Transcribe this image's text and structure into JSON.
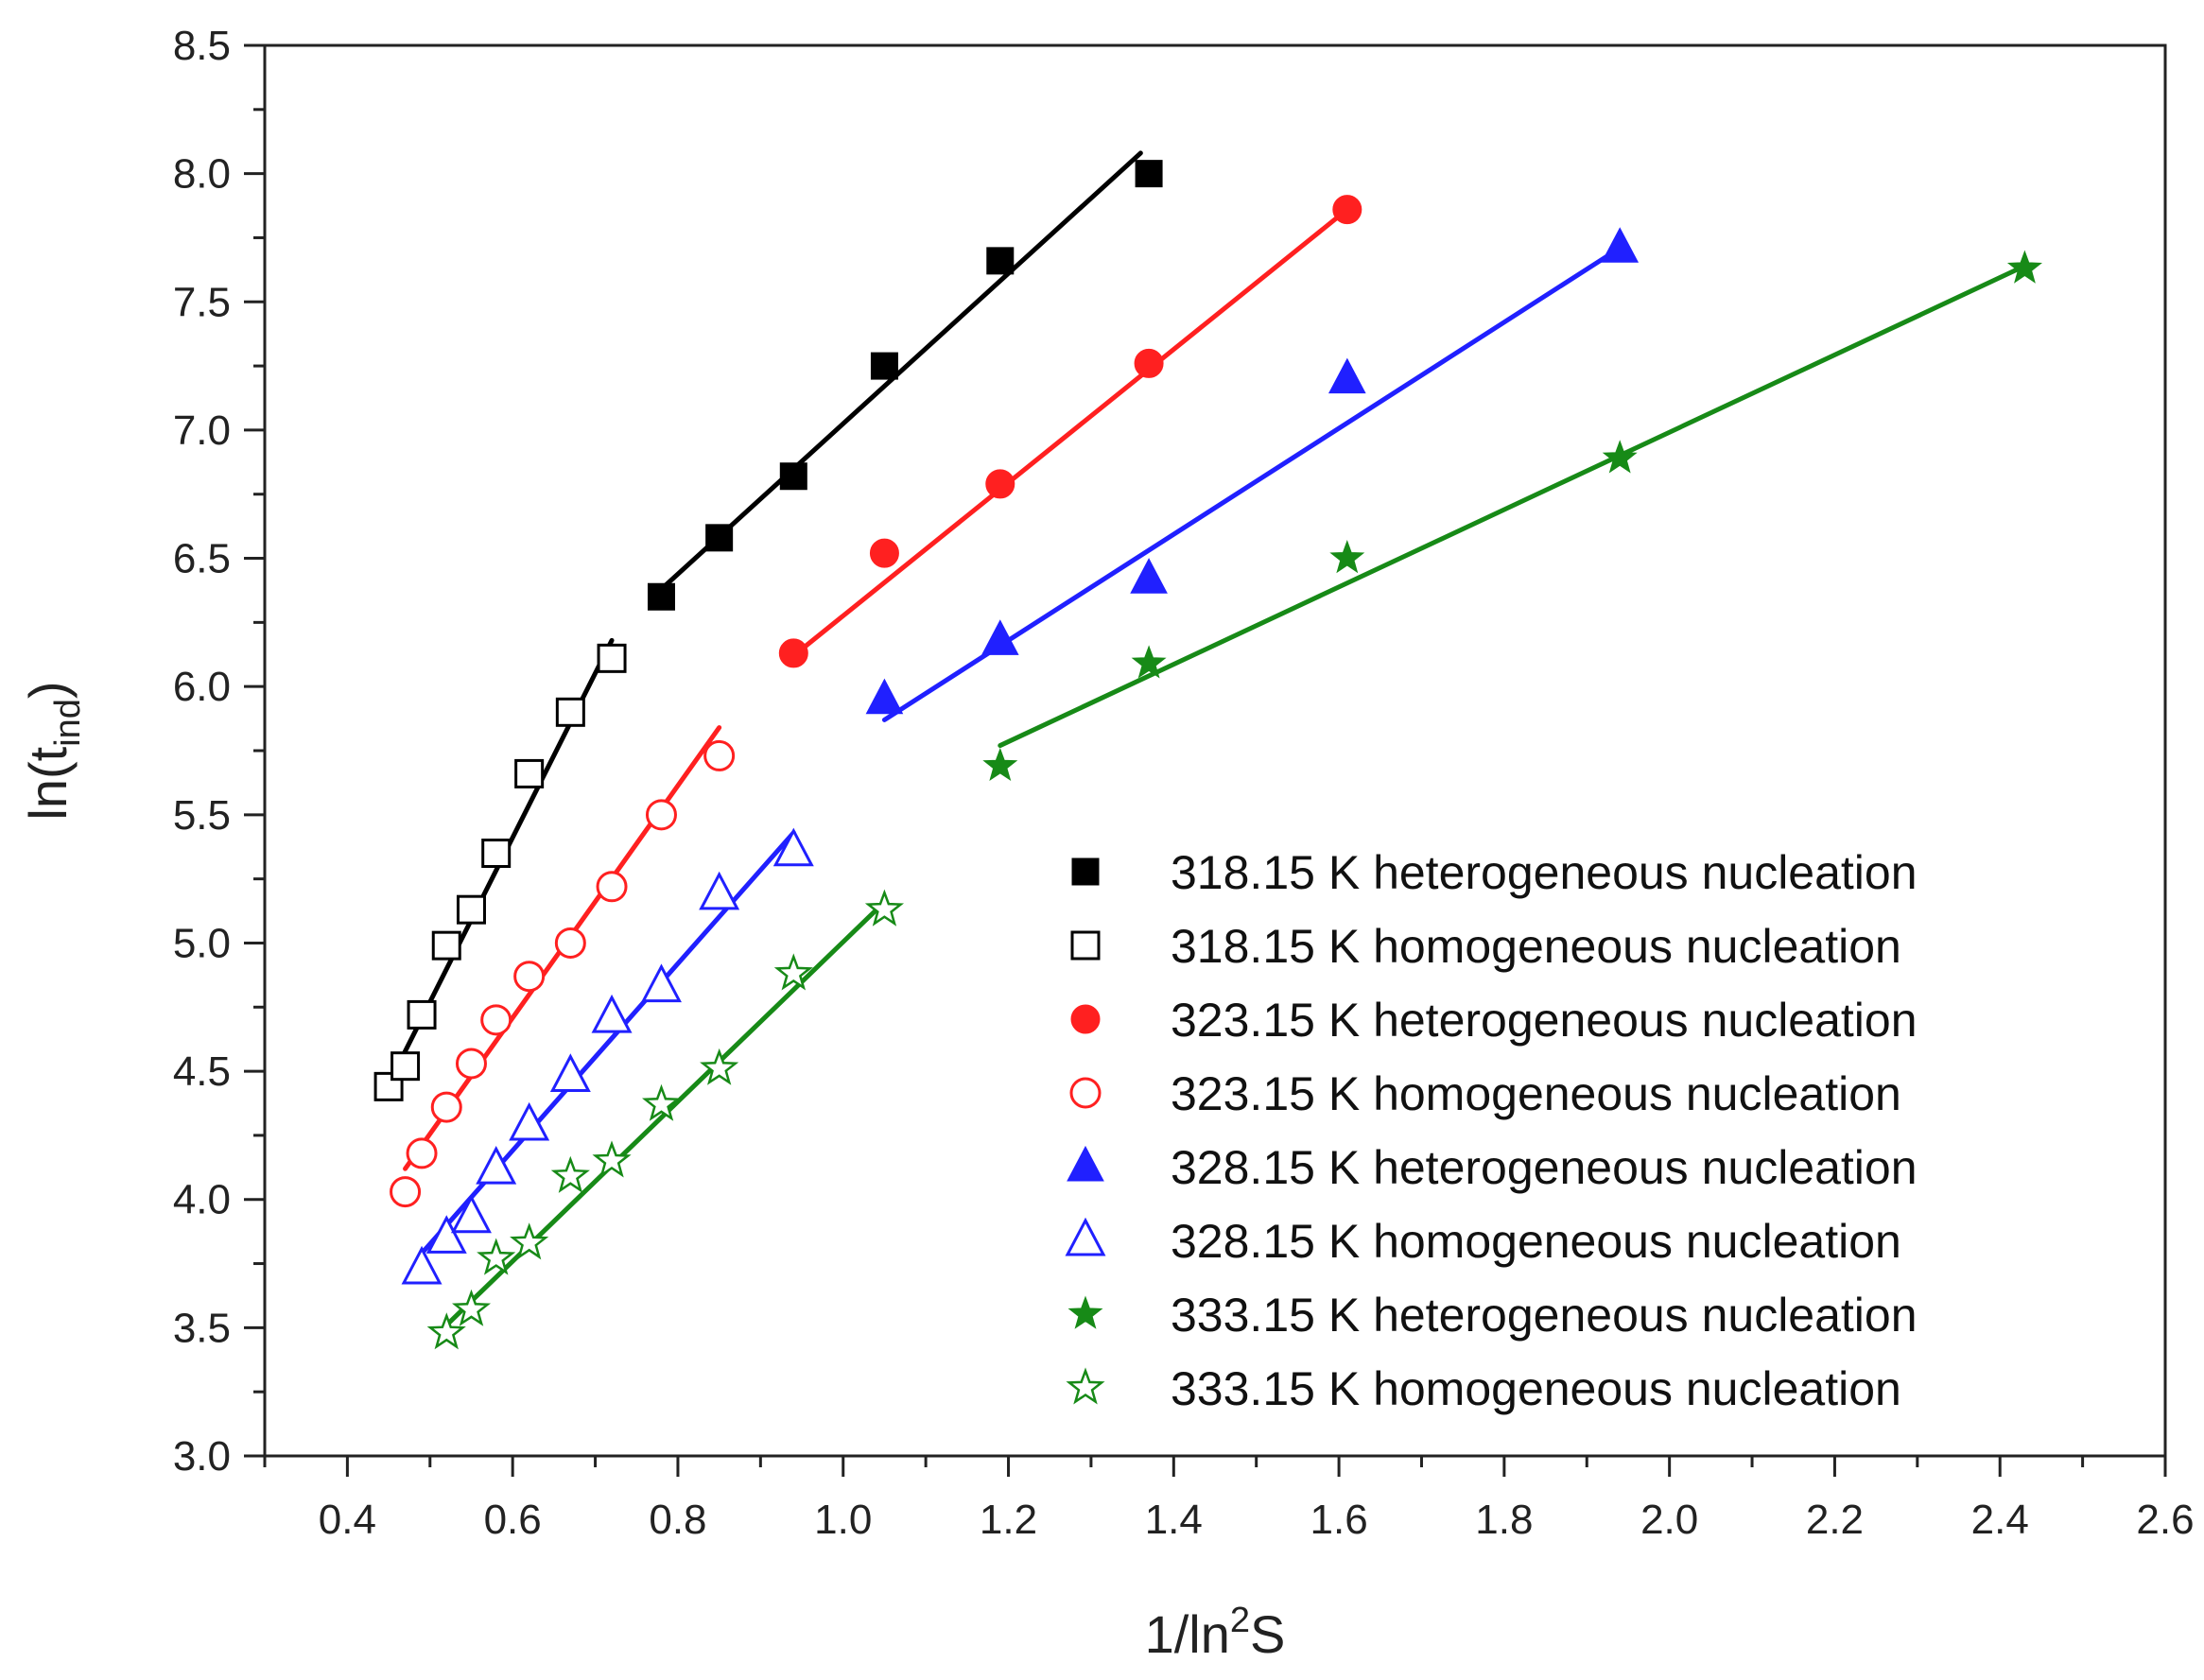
{
  "chart_data": {
    "type": "scatter",
    "title": "",
    "xlabel": "1/ln",
    "xlabel_sup": "2",
    "xlabel_tail": "S",
    "ylabel": "ln(t",
    "ylabel_sub": "ind",
    "ylabel_tail": ")",
    "xlim": [
      0.3,
      2.6
    ],
    "ylim": [
      3.0,
      8.5
    ],
    "xticks": [
      0.4,
      0.6,
      0.8,
      1.0,
      1.2,
      1.4,
      1.6,
      1.8,
      2.0,
      2.2,
      2.4,
      2.6
    ],
    "xtick_labels": [
      "0.4",
      "0.6",
      "0.8",
      "1.0",
      "1.2",
      "1.4",
      "1.6",
      "1.8",
      "2.0",
      "2.2",
      "2.4",
      "2.6"
    ],
    "yticks": [
      3.0,
      3.5,
      4.0,
      4.5,
      5.0,
      5.5,
      6.0,
      6.5,
      7.0,
      7.5,
      8.0,
      8.5
    ],
    "ytick_labels": [
      "3.0",
      "3.5",
      "4.0",
      "4.5",
      "5.0",
      "5.5",
      "6.0",
      "6.5",
      "7.0",
      "7.5",
      "8.0",
      "8.5"
    ],
    "legend_position": "lower-right",
    "series": [
      {
        "name": "318.15 K heterogeneous nucleation",
        "marker": "square",
        "filled": true,
        "color": "#000000",
        "x": [
          0.78,
          0.85,
          0.94,
          1.05,
          1.19,
          1.37
        ],
        "y": [
          6.35,
          6.58,
          6.82,
          7.25,
          7.66,
          8.0
        ],
        "fit": [
          [
            0.78,
            6.38
          ],
          [
            1.36,
            8.08
          ]
        ]
      },
      {
        "name": "318.15 K homogeneous nucleation",
        "marker": "square",
        "filled": false,
        "color": "#000000",
        "x": [
          0.45,
          0.47,
          0.49,
          0.52,
          0.55,
          0.58,
          0.62,
          0.67,
          0.72
        ],
        "y": [
          4.44,
          4.52,
          4.72,
          4.99,
          5.13,
          5.35,
          5.66,
          5.9,
          6.11
        ],
        "fit": [
          [
            0.45,
            4.45
          ],
          [
            0.72,
            6.18
          ]
        ]
      },
      {
        "name": "323.15 K heterogeneous nucleation",
        "marker": "circle",
        "filled": true,
        "color": "#ff2020",
        "x": [
          0.94,
          1.05,
          1.19,
          1.37,
          1.61
        ],
        "y": [
          6.13,
          6.52,
          6.79,
          7.26,
          7.86
        ],
        "fit": [
          [
            0.94,
            6.12
          ],
          [
            1.61,
            7.86
          ]
        ]
      },
      {
        "name": "323.15 K homogeneous nucleation",
        "marker": "circle",
        "filled": false,
        "color": "#ff2020",
        "x": [
          0.47,
          0.49,
          0.52,
          0.55,
          0.58,
          0.62,
          0.67,
          0.72,
          0.78,
          0.85
        ],
        "y": [
          4.03,
          4.18,
          4.36,
          4.53,
          4.7,
          4.87,
          5.0,
          5.22,
          5.5,
          5.73
        ],
        "fit": [
          [
            0.47,
            4.12
          ],
          [
            0.85,
            5.84
          ]
        ]
      },
      {
        "name": "328.15 K heterogeneous nucleation",
        "marker": "triangle",
        "filled": true,
        "color": "#2020ff",
        "x": [
          1.05,
          1.19,
          1.37,
          1.61,
          1.94
        ],
        "y": [
          5.95,
          6.18,
          6.42,
          7.2,
          7.71
        ],
        "fit": [
          [
            1.05,
            5.87
          ],
          [
            1.94,
            7.71
          ]
        ]
      },
      {
        "name": "328.15 K homogeneous nucleation",
        "marker": "triangle",
        "filled": false,
        "color": "#2020ff",
        "x": [
          0.49,
          0.52,
          0.55,
          0.58,
          0.62,
          0.67,
          0.72,
          0.78,
          0.85,
          0.94
        ],
        "y": [
          3.73,
          3.85,
          3.93,
          4.12,
          4.29,
          4.48,
          4.71,
          4.83,
          5.19,
          5.36
        ],
        "fit": [
          [
            0.49,
            3.79
          ],
          [
            0.94,
            5.43
          ]
        ]
      },
      {
        "name": "333.15 K heterogeneous nucleation",
        "marker": "star",
        "filled": true,
        "color": "#178a17",
        "x": [
          1.19,
          1.37,
          1.61,
          1.94,
          2.43
        ],
        "y": [
          5.69,
          6.09,
          6.5,
          6.89,
          7.63
        ],
        "fit": [
          [
            1.19,
            5.77
          ],
          [
            2.43,
            7.64
          ]
        ]
      },
      {
        "name": "333.15 K homogeneous nucleation",
        "marker": "star",
        "filled": false,
        "color": "#178a17",
        "x": [
          0.52,
          0.55,
          0.58,
          0.62,
          0.67,
          0.72,
          0.78,
          0.85,
          0.94,
          1.05
        ],
        "y": [
          3.48,
          3.57,
          3.77,
          3.83,
          4.09,
          4.15,
          4.37,
          4.51,
          4.88,
          5.13
        ],
        "fit": [
          [
            0.52,
            3.51
          ],
          [
            1.05,
            5.16
          ]
        ]
      }
    ]
  }
}
